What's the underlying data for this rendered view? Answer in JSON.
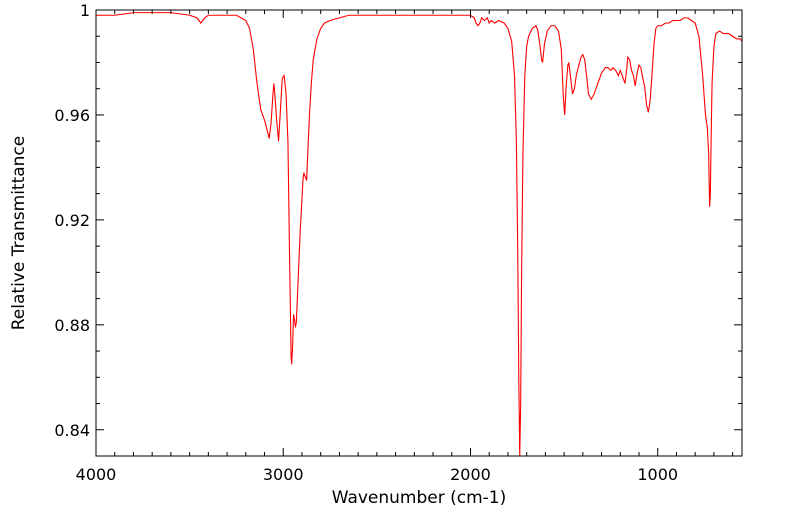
{
  "chart_data": {
    "type": "line",
    "title": "",
    "xlabel": "Wavenumber (cm-1)",
    "ylabel": "Relative Transmittance",
    "xlim": [
      4000,
      550
    ],
    "ylim": [
      0.83,
      1.0
    ],
    "x_reversed": true,
    "grid": false,
    "legend": "none",
    "x_ticks": [
      4000,
      3000,
      2000,
      1000
    ],
    "x_tick_labels": [
      "4000",
      "3000",
      "2000",
      "1000"
    ],
    "y_ticks": [
      1.0,
      0.96,
      0.92,
      0.88,
      0.84
    ],
    "y_tick_labels": [
      "1",
      "0.96",
      "0.92",
      "0.88",
      "0.84"
    ],
    "series": [
      {
        "color": "#ff0000",
        "points": [
          [
            4000,
            0.998
          ],
          [
            3900,
            0.998
          ],
          [
            3800,
            0.999
          ],
          [
            3700,
            0.999
          ],
          [
            3600,
            0.999
          ],
          [
            3500,
            0.998
          ],
          [
            3460,
            0.997
          ],
          [
            3440,
            0.995
          ],
          [
            3420,
            0.997
          ],
          [
            3400,
            0.998
          ],
          [
            3300,
            0.998
          ],
          [
            3250,
            0.998
          ],
          [
            3200,
            0.996
          ],
          [
            3180,
            0.993
          ],
          [
            3160,
            0.985
          ],
          [
            3140,
            0.972
          ],
          [
            3120,
            0.962
          ],
          [
            3100,
            0.958
          ],
          [
            3085,
            0.954
          ],
          [
            3075,
            0.951
          ],
          [
            3065,
            0.957
          ],
          [
            3055,
            0.968
          ],
          [
            3050,
            0.972
          ],
          [
            3045,
            0.968
          ],
          [
            3035,
            0.958
          ],
          [
            3025,
            0.95
          ],
          [
            3015,
            0.962
          ],
          [
            3005,
            0.974
          ],
          [
            2995,
            0.975
          ],
          [
            2985,
            0.968
          ],
          [
            2975,
            0.95
          ],
          [
            2965,
            0.9
          ],
          [
            2958,
            0.868
          ],
          [
            2955,
            0.865
          ],
          [
            2950,
            0.872
          ],
          [
            2945,
            0.884
          ],
          [
            2940,
            0.882
          ],
          [
            2935,
            0.879
          ],
          [
            2930,
            0.881
          ],
          [
            2920,
            0.898
          ],
          [
            2910,
            0.915
          ],
          [
            2900,
            0.928
          ],
          [
            2895,
            0.935
          ],
          [
            2890,
            0.938
          ],
          [
            2880,
            0.936
          ],
          [
            2875,
            0.935
          ],
          [
            2870,
            0.944
          ],
          [
            2860,
            0.96
          ],
          [
            2850,
            0.972
          ],
          [
            2840,
            0.981
          ],
          [
            2820,
            0.989
          ],
          [
            2800,
            0.993
          ],
          [
            2780,
            0.995
          ],
          [
            2750,
            0.996
          ],
          [
            2700,
            0.997
          ],
          [
            2650,
            0.998
          ],
          [
            2600,
            0.998
          ],
          [
            2500,
            0.998
          ],
          [
            2400,
            0.998
          ],
          [
            2300,
            0.998
          ],
          [
            2200,
            0.998
          ],
          [
            2100,
            0.998
          ],
          [
            2000,
            0.998
          ],
          [
            1980,
            0.997
          ],
          [
            1970,
            0.995
          ],
          [
            1960,
            0.994
          ],
          [
            1950,
            0.995
          ],
          [
            1940,
            0.997
          ],
          [
            1925,
            0.996
          ],
          [
            1910,
            0.997
          ],
          [
            1900,
            0.995
          ],
          [
            1890,
            0.996
          ],
          [
            1870,
            0.995
          ],
          [
            1850,
            0.996
          ],
          [
            1820,
            0.995
          ],
          [
            1800,
            0.993
          ],
          [
            1780,
            0.988
          ],
          [
            1765,
            0.975
          ],
          [
            1755,
            0.95
          ],
          [
            1748,
            0.91
          ],
          [
            1742,
            0.86
          ],
          [
            1737,
            0.83
          ],
          [
            1732,
            0.85
          ],
          [
            1727,
            0.9
          ],
          [
            1720,
            0.945
          ],
          [
            1710,
            0.975
          ],
          [
            1700,
            0.986
          ],
          [
            1690,
            0.99
          ],
          [
            1670,
            0.993
          ],
          [
            1650,
            0.994
          ],
          [
            1640,
            0.992
          ],
          [
            1630,
            0.987
          ],
          [
            1620,
            0.981
          ],
          [
            1615,
            0.98
          ],
          [
            1605,
            0.987
          ],
          [
            1590,
            0.992
          ],
          [
            1570,
            0.994
          ],
          [
            1550,
            0.994
          ],
          [
            1530,
            0.992
          ],
          [
            1515,
            0.985
          ],
          [
            1505,
            0.968
          ],
          [
            1497,
            0.96
          ],
          [
            1490,
            0.97
          ],
          [
            1480,
            0.979
          ],
          [
            1475,
            0.98
          ],
          [
            1465,
            0.974
          ],
          [
            1455,
            0.968
          ],
          [
            1445,
            0.97
          ],
          [
            1435,
            0.975
          ],
          [
            1425,
            0.978
          ],
          [
            1410,
            0.982
          ],
          [
            1400,
            0.983
          ],
          [
            1390,
            0.981
          ],
          [
            1380,
            0.975
          ],
          [
            1370,
            0.968
          ],
          [
            1355,
            0.966
          ],
          [
            1340,
            0.968
          ],
          [
            1320,
            0.972
          ],
          [
            1300,
            0.976
          ],
          [
            1280,
            0.978
          ],
          [
            1265,
            0.978
          ],
          [
            1250,
            0.977
          ],
          [
            1240,
            0.978
          ],
          [
            1225,
            0.977
          ],
          [
            1210,
            0.975
          ],
          [
            1200,
            0.977
          ],
          [
            1190,
            0.975
          ],
          [
            1175,
            0.972
          ],
          [
            1165,
            0.978
          ],
          [
            1160,
            0.982
          ],
          [
            1150,
            0.981
          ],
          [
            1140,
            0.977
          ],
          [
            1130,
            0.975
          ],
          [
            1120,
            0.971
          ],
          [
            1110,
            0.976
          ],
          [
            1100,
            0.979
          ],
          [
            1090,
            0.978
          ],
          [
            1080,
            0.974
          ],
          [
            1070,
            0.971
          ],
          [
            1060,
            0.964
          ],
          [
            1050,
            0.961
          ],
          [
            1040,
            0.966
          ],
          [
            1030,
            0.976
          ],
          [
            1020,
            0.987
          ],
          [
            1010,
            0.993
          ],
          [
            1000,
            0.994
          ],
          [
            980,
            0.994
          ],
          [
            960,
            0.995
          ],
          [
            940,
            0.995
          ],
          [
            920,
            0.996
          ],
          [
            900,
            0.996
          ],
          [
            880,
            0.996
          ],
          [
            860,
            0.997
          ],
          [
            840,
            0.997
          ],
          [
            820,
            0.996
          ],
          [
            800,
            0.995
          ],
          [
            780,
            0.99
          ],
          [
            760,
            0.975
          ],
          [
            745,
            0.96
          ],
          [
            735,
            0.955
          ],
          [
            728,
            0.945
          ],
          [
            723,
            0.925
          ],
          [
            719,
            0.93
          ],
          [
            715,
            0.95
          ],
          [
            710,
            0.972
          ],
          [
            700,
            0.986
          ],
          [
            690,
            0.991
          ],
          [
            670,
            0.992
          ],
          [
            650,
            0.991
          ],
          [
            620,
            0.991
          ],
          [
            600,
            0.99
          ],
          [
            580,
            0.989
          ],
          [
            560,
            0.989
          ],
          [
            550,
            0.988
          ]
        ]
      }
    ]
  }
}
